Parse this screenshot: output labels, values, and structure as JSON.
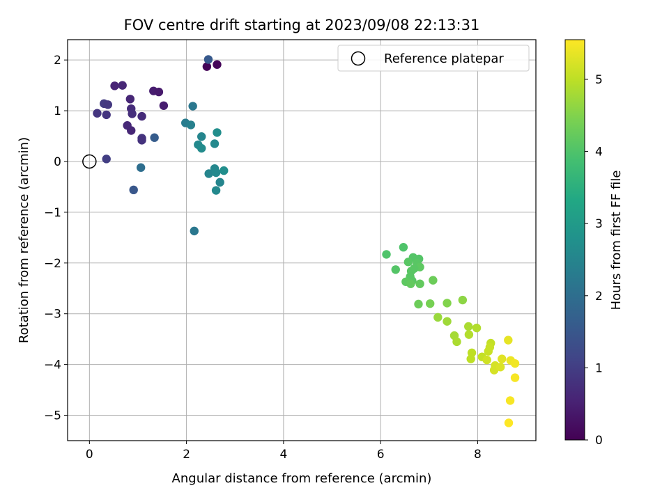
{
  "chart_data": {
    "type": "scatter",
    "title": "FOV centre drift starting at 2023/09/08 22:13:31",
    "xlabel": "Angular distance from reference (arcmin)",
    "ylabel": "Rotation from reference (arcmin)",
    "xlim": [
      -0.45,
      9.2
    ],
    "ylim": [
      -5.5,
      2.4
    ],
    "xticks": [
      0,
      2,
      4,
      6,
      8
    ],
    "yticks": [
      -5,
      -4,
      -3,
      -2,
      -1,
      0,
      1,
      2
    ],
    "xtick_labels": [
      "0",
      "2",
      "4",
      "6",
      "8"
    ],
    "ytick_labels": [
      "−5",
      "−4",
      "−3",
      "−2",
      "−1",
      "0",
      "1",
      "2"
    ],
    "grid": true,
    "legend": {
      "placement": "top-right",
      "label": "Reference platepar"
    },
    "reference_point": {
      "x": 0,
      "y": 0
    },
    "colorbar": {
      "label": "Hours from first FF file",
      "range": [
        0,
        5.55
      ],
      "ticks": [
        0,
        1,
        2,
        3,
        4,
        5
      ],
      "tick_labels": [
        "0",
        "1",
        "2",
        "3",
        "4",
        "5"
      ],
      "colormap": "viridis"
    },
    "points": [
      {
        "x": 2.42,
        "y": 1.87,
        "h": 0.05
      },
      {
        "x": 2.63,
        "y": 1.91,
        "h": 0.08
      },
      {
        "x": 2.45,
        "y": 2.01,
        "h": 1.55
      },
      {
        "x": 0.52,
        "y": 1.49,
        "h": 0.55
      },
      {
        "x": 0.68,
        "y": 1.5,
        "h": 0.6
      },
      {
        "x": 1.32,
        "y": 1.39,
        "h": 0.45
      },
      {
        "x": 1.43,
        "y": 1.37,
        "h": 0.4
      },
      {
        "x": 1.53,
        "y": 1.1,
        "h": 0.45
      },
      {
        "x": 0.84,
        "y": 1.23,
        "h": 0.6
      },
      {
        "x": 0.3,
        "y": 1.14,
        "h": 0.95
      },
      {
        "x": 0.38,
        "y": 1.12,
        "h": 0.9
      },
      {
        "x": 0.16,
        "y": 0.95,
        "h": 0.85
      },
      {
        "x": 0.35,
        "y": 0.92,
        "h": 0.85
      },
      {
        "x": 0.86,
        "y": 1.04,
        "h": 0.7
      },
      {
        "x": 0.88,
        "y": 0.94,
        "h": 0.75
      },
      {
        "x": 1.08,
        "y": 0.89,
        "h": 0.7
      },
      {
        "x": 0.78,
        "y": 0.71,
        "h": 0.65
      },
      {
        "x": 0.86,
        "y": 0.61,
        "h": 0.6
      },
      {
        "x": 1.08,
        "y": 0.46,
        "h": 0.85
      },
      {
        "x": 1.08,
        "y": 0.42,
        "h": 0.8
      },
      {
        "x": 1.34,
        "y": 0.47,
        "h": 1.6
      },
      {
        "x": 0.35,
        "y": 0.05,
        "h": 1.0
      },
      {
        "x": 1.06,
        "y": -0.12,
        "h": 2.0
      },
      {
        "x": 0.91,
        "y": -0.56,
        "h": 1.5
      },
      {
        "x": 2.13,
        "y": 1.09,
        "h": 2.2
      },
      {
        "x": 1.98,
        "y": 0.76,
        "h": 2.3
      },
      {
        "x": 2.09,
        "y": 0.72,
        "h": 2.4
      },
      {
        "x": 2.31,
        "y": 0.49,
        "h": 2.5
      },
      {
        "x": 2.24,
        "y": 0.33,
        "h": 2.6
      },
      {
        "x": 2.31,
        "y": 0.26,
        "h": 2.65
      },
      {
        "x": 2.58,
        "y": 0.35,
        "h": 2.6
      },
      {
        "x": 2.63,
        "y": 0.57,
        "h": 2.7
      },
      {
        "x": 2.46,
        "y": -0.24,
        "h": 2.5
      },
      {
        "x": 2.58,
        "y": -0.14,
        "h": 2.55
      },
      {
        "x": 2.61,
        "y": -0.22,
        "h": 2.6
      },
      {
        "x": 2.77,
        "y": -0.18,
        "h": 2.7
      },
      {
        "x": 2.69,
        "y": -0.41,
        "h": 2.5
      },
      {
        "x": 2.61,
        "y": -0.57,
        "h": 2.6
      },
      {
        "x": 2.16,
        "y": -1.37,
        "h": 2.2
      },
      {
        "x": 6.12,
        "y": -1.83,
        "h": 4.0
      },
      {
        "x": 6.47,
        "y": -1.69,
        "h": 4.0
      },
      {
        "x": 6.67,
        "y": -1.89,
        "h": 4.05
      },
      {
        "x": 6.79,
        "y": -1.92,
        "h": 4.05
      },
      {
        "x": 6.57,
        "y": -1.98,
        "h": 4.1
      },
      {
        "x": 6.75,
        "y": -2.0,
        "h": 4.1
      },
      {
        "x": 6.81,
        "y": -2.08,
        "h": 4.15
      },
      {
        "x": 6.63,
        "y": -2.16,
        "h": 4.1
      },
      {
        "x": 6.69,
        "y": -2.11,
        "h": 4.1
      },
      {
        "x": 6.31,
        "y": -2.13,
        "h": 4.05
      },
      {
        "x": 6.61,
        "y": -2.27,
        "h": 4.1
      },
      {
        "x": 6.65,
        "y": -2.35,
        "h": 4.1
      },
      {
        "x": 6.52,
        "y": -2.37,
        "h": 4.15
      },
      {
        "x": 6.62,
        "y": -2.41,
        "h": 4.2
      },
      {
        "x": 6.81,
        "y": -2.41,
        "h": 4.2
      },
      {
        "x": 7.08,
        "y": -2.34,
        "h": 4.3
      },
      {
        "x": 6.78,
        "y": -2.81,
        "h": 4.3
      },
      {
        "x": 7.02,
        "y": -2.8,
        "h": 4.4
      },
      {
        "x": 7.37,
        "y": -2.79,
        "h": 4.5
      },
      {
        "x": 7.69,
        "y": -2.73,
        "h": 4.6
      },
      {
        "x": 7.18,
        "y": -3.07,
        "h": 4.7
      },
      {
        "x": 7.37,
        "y": -3.15,
        "h": 4.75
      },
      {
        "x": 7.52,
        "y": -3.43,
        "h": 4.8
      },
      {
        "x": 7.57,
        "y": -3.55,
        "h": 4.85
      },
      {
        "x": 7.81,
        "y": -3.25,
        "h": 4.85
      },
      {
        "x": 7.98,
        "y": -3.28,
        "h": 4.9
      },
      {
        "x": 7.82,
        "y": -3.41,
        "h": 4.9
      },
      {
        "x": 7.88,
        "y": -3.77,
        "h": 5.0
      },
      {
        "x": 7.86,
        "y": -3.89,
        "h": 5.0
      },
      {
        "x": 8.09,
        "y": -3.85,
        "h": 5.05
      },
      {
        "x": 8.27,
        "y": -3.58,
        "h": 5.05
      },
      {
        "x": 8.25,
        "y": -3.66,
        "h": 5.1
      },
      {
        "x": 8.22,
        "y": -3.74,
        "h": 5.1
      },
      {
        "x": 8.19,
        "y": -3.91,
        "h": 5.15
      },
      {
        "x": 8.36,
        "y": -4.02,
        "h": 5.2
      },
      {
        "x": 8.34,
        "y": -4.11,
        "h": 5.2
      },
      {
        "x": 8.47,
        "y": -4.05,
        "h": 5.25
      },
      {
        "x": 8.5,
        "y": -3.89,
        "h": 5.3
      },
      {
        "x": 8.63,
        "y": -3.52,
        "h": 5.35
      },
      {
        "x": 8.68,
        "y": -3.92,
        "h": 5.4
      },
      {
        "x": 8.77,
        "y": -3.98,
        "h": 5.45
      },
      {
        "x": 8.77,
        "y": -4.26,
        "h": 5.5
      },
      {
        "x": 8.67,
        "y": -4.71,
        "h": 5.5
      },
      {
        "x": 8.64,
        "y": -5.15,
        "h": 5.55
      }
    ]
  }
}
